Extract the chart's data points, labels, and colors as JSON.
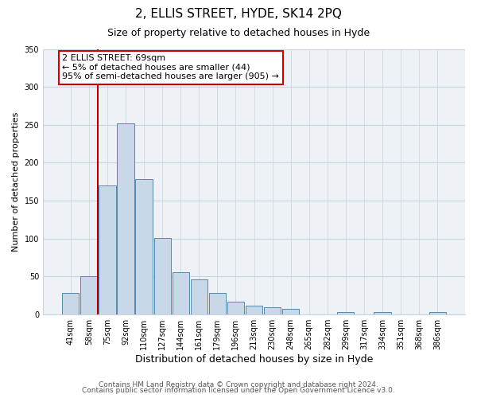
{
  "title": "2, ELLIS STREET, HYDE, SK14 2PQ",
  "subtitle": "Size of property relative to detached houses in Hyde",
  "xlabel": "Distribution of detached houses by size in Hyde",
  "ylabel": "Number of detached properties",
  "bar_labels": [
    "41sqm",
    "58sqm",
    "75sqm",
    "92sqm",
    "110sqm",
    "127sqm",
    "144sqm",
    "161sqm",
    "179sqm",
    "196sqm",
    "213sqm",
    "230sqm",
    "248sqm",
    "265sqm",
    "282sqm",
    "299sqm",
    "317sqm",
    "334sqm",
    "351sqm",
    "368sqm",
    "386sqm"
  ],
  "bar_values": [
    28,
    50,
    170,
    252,
    178,
    101,
    55,
    46,
    28,
    16,
    11,
    9,
    7,
    0,
    0,
    3,
    0,
    3,
    0,
    0,
    3
  ],
  "bar_color": "#c8d8e8",
  "bar_edge_color": "#5588aa",
  "ylim": [
    0,
    350
  ],
  "yticks": [
    0,
    50,
    100,
    150,
    200,
    250,
    300,
    350
  ],
  "vline_color": "#aa0000",
  "annotation_title": "2 ELLIS STREET: 69sqm",
  "annotation_line1": "← 5% of detached houses are smaller (44)",
  "annotation_line2": "95% of semi-detached houses are larger (905) →",
  "annotation_box_color": "#ffffff",
  "annotation_box_edge": "#cc0000",
  "footer1": "Contains HM Land Registry data © Crown copyright and database right 2024.",
  "footer2": "Contains public sector information licensed under the Open Government Licence v3.0.",
  "background_color": "#eef2f7",
  "plot_background": "#ffffff",
  "grid_color": "#c8d4e0",
  "title_fontsize": 11,
  "subtitle_fontsize": 9
}
